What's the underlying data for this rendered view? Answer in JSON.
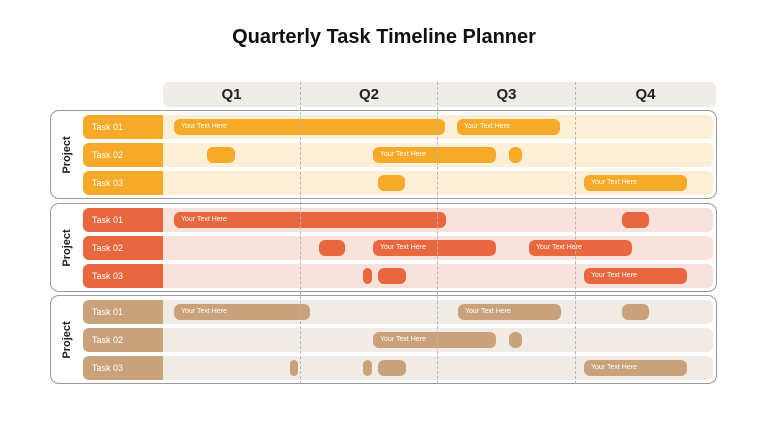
{
  "title": "Quarterly Task Timeline Planner",
  "quarters": [
    "Q1",
    "Q2",
    "Q3",
    "Q4"
  ],
  "groups": [
    {
      "label": "Project",
      "colors": {
        "label": "#f7a928",
        "row": "#fdefd5",
        "bar": "#f7a928"
      },
      "tasks": [
        {
          "name": "Task 01",
          "bars": [
            {
              "text": "Your Text Here"
            },
            {
              "text": "Your Text Here"
            }
          ]
        },
        {
          "name": "Task 02",
          "bars": [
            {
              "text": ""
            },
            {
              "text": "Your Text Here"
            },
            {
              "text": ""
            }
          ]
        },
        {
          "name": "Task 03",
          "bars": [
            {
              "text": ""
            },
            {
              "text": "Your Text Here"
            }
          ]
        }
      ]
    },
    {
      "label": "Project",
      "colors": {
        "label": "#e8673f",
        "row": "#f9e1dc",
        "bar": "#e8673f"
      },
      "tasks": [
        {
          "name": "Task 01",
          "bars": [
            {
              "text": "Your Text Here"
            },
            {
              "text": ""
            }
          ]
        },
        {
          "name": "Task 02",
          "bars": [
            {
              "text": ""
            },
            {
              "text": "Your Text Here"
            },
            {
              "text": "Your Text Here"
            }
          ]
        },
        {
          "name": "Task 03",
          "bars": [
            {
              "text": ""
            },
            {
              "text": ""
            },
            {
              "text": "Your Text Here"
            }
          ]
        }
      ]
    },
    {
      "label": "Project",
      "colors": {
        "label": "#c9a27c",
        "row": "#f1ebe5",
        "bar": "#c9a27c"
      },
      "tasks": [
        {
          "name": "Task 01",
          "bars": [
            {
              "text": "Your Text Here"
            },
            {
              "text": "Your Text Here"
            },
            {
              "text": ""
            }
          ]
        },
        {
          "name": "Task 02",
          "bars": [
            {
              "text": "Your Text Here"
            },
            {
              "text": ""
            }
          ]
        },
        {
          "name": "Task 03",
          "bars": [
            {
              "text": ""
            },
            {
              "text": ""
            },
            {
              "text": ""
            },
            {
              "text": "Your Text Here"
            }
          ]
        }
      ]
    }
  ]
}
